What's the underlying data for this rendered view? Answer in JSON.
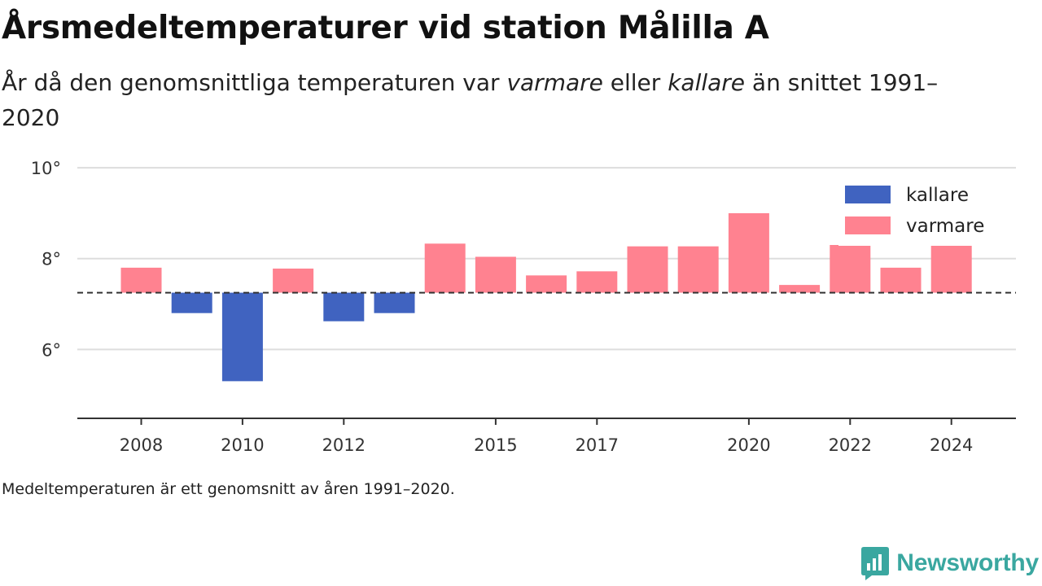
{
  "title": "Årsmedeltemperaturer vid station Målilla A",
  "subtitle": {
    "before": "År då den genomsnittliga temperaturen var ",
    "warmer_word": "varmare",
    "middle": " eller ",
    "colder_word": "kallare",
    "after": " än snittet 1991–2020"
  },
  "footnote": "Medeltemperaturen är ett genomsnitt av åren 1991–2020.",
  "brand": {
    "name": "Newsworthy",
    "icon": "newsworthy-logo-icon",
    "color": "#3aa7a0"
  },
  "chart_data": {
    "type": "bar",
    "baseline": 7.25,
    "baseline_style": "dashed",
    "x": [
      2008,
      2009,
      2010,
      2011,
      2012,
      2013,
      2014,
      2015,
      2016,
      2017,
      2018,
      2019,
      2020,
      2021,
      2022,
      2023,
      2024
    ],
    "values": [
      7.8,
      6.8,
      5.3,
      7.78,
      6.62,
      6.8,
      8.33,
      8.04,
      7.63,
      7.72,
      8.27,
      8.27,
      9.0,
      7.42,
      8.3,
      7.8,
      8.33
    ],
    "x_ticks": [
      "2008",
      "2010",
      "2012",
      "2015",
      "2017",
      "2020",
      "2022",
      "2024"
    ],
    "y_ticks": [
      "6°",
      "8°",
      "10°"
    ],
    "y_tick_values": [
      6,
      8,
      10
    ],
    "ylim": [
      4.5,
      10.2
    ],
    "grid": true,
    "legend_position": "top-right",
    "legend": [
      {
        "label": "kallare",
        "color": "#4063c0"
      },
      {
        "label": "varmare",
        "color": "#ff8290"
      }
    ],
    "colors": {
      "colder": "#4063c0",
      "warmer": "#ff8290",
      "baseline": "#333333",
      "grid": "#dddddd",
      "axis": "#333333"
    }
  }
}
